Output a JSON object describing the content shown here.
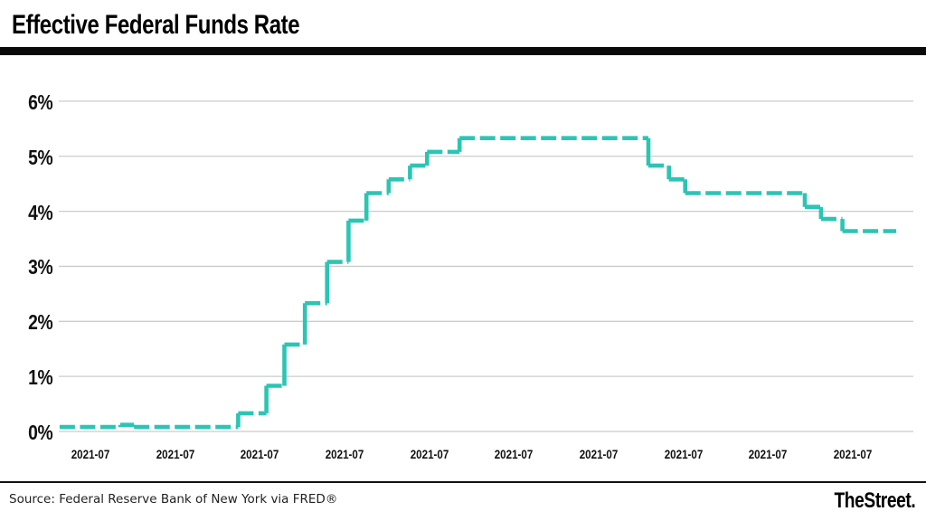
{
  "header": {
    "title": "Effective Federal Funds Rate"
  },
  "footer": {
    "source": "Source: Federal Reserve Bank of New York via FRED®",
    "brand": "TheStreet."
  },
  "chart_data": {
    "type": "line",
    "subtype": "step",
    "title": "Effective Federal Funds Rate",
    "series_name": "Effective Federal Funds Rate (%)",
    "line_color": "#2BC5B4",
    "grid_color": "#cccccc",
    "text_color": "#111111",
    "ylim": [
      0,
      6
    ],
    "ylabel": "",
    "xlabel": "",
    "grid": "horizontal-only",
    "legend": "none",
    "y_ticks": [
      {
        "label": "0%",
        "value": 0
      },
      {
        "label": "1%",
        "value": 1
      },
      {
        "label": "2%",
        "value": 2
      },
      {
        "label": "3%",
        "value": 3
      },
      {
        "label": "4%",
        "value": 4
      },
      {
        "label": "5%",
        "value": 5
      },
      {
        "label": "6%",
        "value": 6
      }
    ],
    "x_tick_labels": [
      "2021-07",
      "2021-07",
      "2021-07",
      "2021-07",
      "2021-07",
      "2021-07",
      "2021-07",
      "2021-07",
      "2021-07",
      "2021-07"
    ],
    "steps_note": "x is fraction of plot width; v is rate in percent held from that x until the next step",
    "steps": [
      {
        "x": 0.001,
        "v": 0.08
      },
      {
        "x": 0.072,
        "v": 0.12
      },
      {
        "x": 0.088,
        "v": 0.08
      },
      {
        "x": 0.21,
        "v": 0.33
      },
      {
        "x": 0.243,
        "v": 0.83
      },
      {
        "x": 0.264,
        "v": 1.58
      },
      {
        "x": 0.288,
        "v": 2.33
      },
      {
        "x": 0.314,
        "v": 3.08
      },
      {
        "x": 0.339,
        "v": 3.83
      },
      {
        "x": 0.36,
        "v": 4.33
      },
      {
        "x": 0.386,
        "v": 4.58
      },
      {
        "x": 0.411,
        "v": 4.83
      },
      {
        "x": 0.431,
        "v": 5.08
      },
      {
        "x": 0.469,
        "v": 5.33
      },
      {
        "x": 0.69,
        "v": 4.83
      },
      {
        "x": 0.714,
        "v": 4.58
      },
      {
        "x": 0.733,
        "v": 4.33
      },
      {
        "x": 0.873,
        "v": 4.08
      },
      {
        "x": 0.892,
        "v": 3.86
      },
      {
        "x": 0.917,
        "v": 3.64
      }
    ],
    "x_end": 0.98
  }
}
